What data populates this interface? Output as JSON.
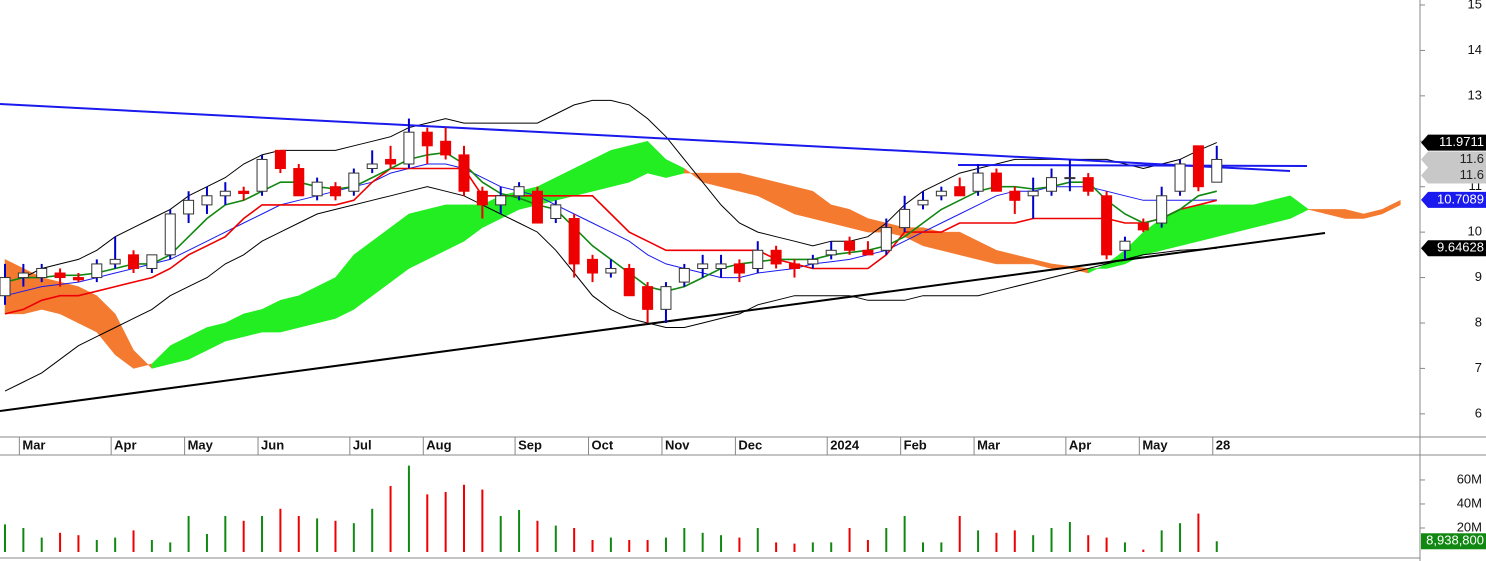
{
  "chart_data": {
    "type": "candlestick",
    "categories": [
      null,
      "Mar",
      null,
      null,
      null,
      null,
      "Apr",
      null,
      null,
      null,
      "May",
      null,
      null,
      null,
      "Jun",
      null,
      null,
      null,
      null,
      "Jul",
      null,
      null,
      null,
      "Aug",
      null,
      null,
      null,
      null,
      "Sep",
      null,
      null,
      null,
      "Oct",
      null,
      null,
      null,
      "Nov",
      null,
      null,
      null,
      "Dec",
      null,
      null,
      null,
      null,
      "2024",
      null,
      null,
      null,
      "Feb",
      null,
      null,
      null,
      "Mar",
      null,
      null,
      null,
      null,
      "Apr",
      null,
      null,
      null,
      "May",
      null,
      null,
      null,
      "28",
      null,
      null,
      null,
      null,
      null,
      null,
      null,
      null,
      null,
      null
    ],
    "open": [
      8.6,
      9.0,
      9.0,
      9.1,
      9.0,
      9.0,
      9.3,
      9.5,
      9.2,
      9.5,
      10.4,
      10.6,
      10.8,
      10.9,
      10.9,
      11.8,
      11.4,
      10.8,
      11.0,
      10.9,
      11.4,
      11.6,
      11.5,
      12.2,
      12.0,
      11.7,
      10.9,
      10.6,
      10.8,
      10.9,
      10.3,
      10.3,
      9.4,
      9.1,
      9.2,
      8.8,
      8.3,
      8.9,
      9.2,
      9.2,
      9.3,
      9.2,
      9.6,
      9.3,
      9.3,
      9.5,
      9.8,
      9.6,
      9.6,
      10.1,
      10.6,
      10.8,
      11.0,
      10.9,
      11.3,
      10.9,
      10.8,
      10.9,
      11.2,
      11.2,
      10.8,
      9.6,
      10.2,
      10.2,
      10.9,
      11.9,
      11.1,
      null,
      null,
      null,
      null,
      null,
      null,
      null,
      null,
      null,
      null
    ],
    "high": [
      9.3,
      9.3,
      9.3,
      9.2,
      9.1,
      9.4,
      9.9,
      9.6,
      9.5,
      10.5,
      10.9,
      11.0,
      11.1,
      11.0,
      11.7,
      11.8,
      11.5,
      11.2,
      11.1,
      11.4,
      11.8,
      11.9,
      12.5,
      12.3,
      12.3,
      11.9,
      11.0,
      11.0,
      11.1,
      11.0,
      10.7,
      10.4,
      9.5,
      9.4,
      9.3,
      8.9,
      8.9,
      9.3,
      9.5,
      9.5,
      9.4,
      9.8,
      9.7,
      9.4,
      9.5,
      9.8,
      9.9,
      9.8,
      10.3,
      10.8,
      10.9,
      11.0,
      11.2,
      11.5,
      11.4,
      11.0,
      11.2,
      11.4,
      11.6,
      11.3,
      10.9,
      9.9,
      10.3,
      11.0,
      11.6,
      11.9,
      11.9,
      null,
      null,
      null,
      null,
      null,
      null,
      null,
      null,
      null,
      null
    ],
    "low": [
      8.4,
      8.8,
      8.9,
      8.8,
      8.9,
      8.9,
      9.2,
      9.1,
      9.1,
      9.4,
      10.2,
      10.4,
      10.6,
      10.7,
      10.8,
      11.3,
      10.8,
      10.7,
      10.7,
      10.8,
      11.3,
      11.4,
      11.4,
      11.5,
      11.6,
      10.8,
      10.3,
      10.4,
      10.7,
      10.2,
      10.2,
      9.0,
      8.9,
      9.0,
      8.6,
      8.0,
      8.0,
      8.8,
      9.0,
      9.0,
      8.9,
      9.1,
      9.2,
      9.0,
      9.2,
      9.4,
      9.5,
      9.5,
      9.5,
      10.0,
      10.5,
      10.7,
      10.8,
      10.8,
      10.9,
      10.4,
      10.3,
      10.8,
      10.9,
      10.8,
      9.4,
      9.4,
      10.0,
      10.1,
      10.8,
      10.9,
      11.1,
      null,
      null,
      null,
      null,
      null,
      null,
      null,
      null,
      null,
      null
    ],
    "close": [
      9.0,
      9.1,
      9.2,
      9.0,
      8.95,
      9.3,
      9.4,
      9.2,
      9.5,
      10.4,
      10.7,
      10.8,
      10.9,
      10.85,
      11.6,
      11.4,
      10.8,
      11.1,
      10.8,
      11.3,
      11.5,
      11.5,
      12.2,
      11.9,
      11.7,
      10.9,
      10.6,
      10.8,
      11.0,
      10.2,
      10.6,
      9.3,
      9.1,
      9.2,
      8.6,
      8.3,
      8.8,
      9.2,
      9.3,
      9.3,
      9.1,
      9.6,
      9.3,
      9.2,
      9.4,
      9.6,
      9.6,
      9.5,
      10.1,
      10.5,
      10.7,
      10.9,
      10.8,
      11.3,
      10.9,
      10.7,
      10.9,
      11.2,
      11.2,
      10.9,
      9.5,
      9.8,
      10.05,
      10.8,
      11.5,
      11.0,
      11.6,
      null,
      null,
      null,
      null,
      null,
      null,
      null,
      null,
      null,
      null
    ],
    "up_color": "#0000cc",
    "down_color": "#ee0000",
    "ylim": [
      5.49,
      15.11
    ],
    "yticks": [
      6,
      7,
      8,
      9,
      10,
      11,
      12,
      13,
      14,
      15
    ],
    "lines": [
      {
        "color": "#000000",
        "values": [
          8.9,
          9.0,
          9.2,
          9.3,
          9.4,
          9.6,
          9.9,
          10.1,
          10.3,
          10.5,
          10.8,
          11.0,
          11.2,
          11.5,
          11.7,
          11.8,
          11.8,
          11.8,
          11.8,
          11.9,
          12.0,
          12.1,
          12.3,
          12.4,
          12.5,
          12.4,
          12.4,
          12.4,
          12.4,
          12.4,
          12.6,
          12.8,
          12.9,
          12.9,
          12.8,
          12.5,
          12.1,
          11.6,
          11.1,
          10.6,
          10.2,
          10.0,
          9.9,
          9.8,
          9.7,
          9.8,
          9.8,
          9.9,
          10.2,
          10.6,
          10.9,
          11.1,
          11.3,
          11.4,
          11.5,
          11.6,
          11.6,
          11.6,
          11.6,
          11.6,
          11.6,
          11.5,
          11.4,
          11.5,
          11.6,
          11.8,
          11.97,
          null,
          null,
          null,
          null,
          null,
          null,
          null,
          null,
          null,
          null
        ]
      },
      {
        "color": "#000000",
        "values": [
          6.5,
          6.7,
          6.9,
          7.2,
          7.5,
          7.7,
          7.9,
          8.1,
          8.3,
          8.6,
          8.8,
          9.0,
          9.3,
          9.5,
          9.8,
          10.0,
          10.2,
          10.4,
          10.5,
          10.6,
          10.7,
          10.8,
          10.9,
          11.0,
          10.9,
          10.8,
          10.6,
          10.4,
          10.2,
          10.0,
          9.6,
          9.1,
          8.6,
          8.3,
          8.1,
          8.0,
          7.9,
          7.9,
          8.0,
          8.1,
          8.2,
          8.4,
          8.5,
          8.6,
          8.6,
          8.6,
          8.6,
          8.5,
          8.5,
          8.5,
          8.6,
          8.6,
          8.6,
          8.6,
          8.7,
          8.8,
          8.9,
          9.0,
          9.1,
          9.2,
          9.3,
          9.4,
          9.5,
          9.55,
          9.6,
          9.62,
          9.646,
          null,
          null,
          null,
          null,
          null,
          null,
          null,
          null,
          null,
          null
        ]
      },
      {
        "color": "#1a1aee",
        "values": [
          8.6,
          8.7,
          8.8,
          8.85,
          8.9,
          9.0,
          9.1,
          9.2,
          9.3,
          9.4,
          9.6,
          9.8,
          10.0,
          10.2,
          10.4,
          10.6,
          10.7,
          10.8,
          10.9,
          11.0,
          11.1,
          11.3,
          11.4,
          11.5,
          11.5,
          11.4,
          11.2,
          11.0,
          10.9,
          10.8,
          10.6,
          10.4,
          10.2,
          10.0,
          9.8,
          9.5,
          9.3,
          9.2,
          9.1,
          9.0,
          9.0,
          9.1,
          9.15,
          9.2,
          9.3,
          9.35,
          9.4,
          9.5,
          9.6,
          9.8,
          10.0,
          10.2,
          10.4,
          10.6,
          10.8,
          10.9,
          10.9,
          11.0,
          11.0,
          11.0,
          10.9,
          10.8,
          10.7,
          10.7,
          10.7,
          10.7,
          10.71,
          null,
          null,
          null,
          null,
          null,
          null,
          null,
          null,
          null,
          null
        ]
      },
      {
        "color": "#ee0000",
        "values": [
          8.2,
          8.3,
          8.5,
          8.6,
          8.6,
          8.7,
          8.8,
          8.9,
          9.0,
          9.2,
          9.5,
          9.7,
          9.9,
          10.3,
          10.6,
          10.6,
          10.6,
          10.6,
          10.6,
          10.7,
          11.1,
          11.4,
          11.4,
          11.4,
          11.4,
          11.4,
          10.8,
          10.8,
          10.8,
          10.8,
          10.8,
          10.8,
          10.8,
          10.4,
          10.0,
          9.8,
          9.6,
          9.6,
          9.6,
          9.6,
          9.6,
          9.6,
          9.4,
          9.3,
          9.2,
          9.2,
          9.2,
          9.2,
          9.5,
          10.0,
          10.0,
          10.0,
          10.2,
          10.2,
          10.2,
          10.2,
          10.3,
          10.3,
          10.3,
          10.3,
          10.3,
          10.2,
          10.2,
          10.3,
          10.5,
          10.6,
          10.7,
          null,
          null,
          null,
          null,
          null,
          null,
          null,
          null,
          null,
          null
        ]
      },
      {
        "color": "#118811",
        "values": [
          8.9,
          9.0,
          9.0,
          9.05,
          9.05,
          9.1,
          9.2,
          9.3,
          9.3,
          9.5,
          9.9,
          10.3,
          10.6,
          10.7,
          10.9,
          11.1,
          11.1,
          11.0,
          10.95,
          11.0,
          11.2,
          11.4,
          11.6,
          11.7,
          11.75,
          11.5,
          11.1,
          10.85,
          10.75,
          10.6,
          10.5,
          10.1,
          9.7,
          9.4,
          9.1,
          8.8,
          8.7,
          8.8,
          9.0,
          9.2,
          9.3,
          9.35,
          9.4,
          9.4,
          9.4,
          9.5,
          9.55,
          9.6,
          9.7,
          9.9,
          10.2,
          10.5,
          10.7,
          10.9,
          11.0,
          11.0,
          10.95,
          11.0,
          11.1,
          11.1,
          10.7,
          10.4,
          10.2,
          10.3,
          10.5,
          10.8,
          10.9,
          null,
          null,
          null,
          null,
          null,
          null,
          null,
          null,
          null,
          null
        ]
      }
    ],
    "cloud": {
      "up_color": "#22ee22",
      "down_color": "#f47a30",
      "span_a": [
        8.2,
        8.2,
        8.3,
        8.2,
        8.0,
        7.8,
        7.3,
        7.0,
        7.1,
        7.5,
        7.7,
        7.9,
        8.0,
        8.2,
        8.3,
        8.5,
        8.6,
        8.8,
        9.0,
        9.5,
        9.8,
        10.1,
        10.4,
        10.5,
        10.6,
        10.6,
        10.6,
        10.8,
        10.9,
        11.0,
        11.2,
        11.4,
        11.6,
        11.8,
        11.9,
        12.0,
        11.6,
        11.4,
        11.1,
        11.0,
        10.9,
        10.8,
        10.6,
        10.4,
        10.3,
        10.2,
        10.1,
        10.0,
        10.0,
        9.9,
        9.7,
        9.6,
        9.5,
        9.4,
        9.3,
        9.3,
        9.3,
        9.2,
        9.2,
        9.1,
        9.3,
        9.6,
        10.0,
        10.3,
        10.5,
        10.6,
        10.6,
        10.6,
        10.6,
        10.7,
        10.8,
        10.5,
        10.4,
        10.3,
        10.3,
        10.4,
        10.6
      ],
      "span_b": [
        9.4,
        9.2,
        9.0,
        8.9,
        8.8,
        8.6,
        8.2,
        7.4,
        7.0,
        7.1,
        7.2,
        7.4,
        7.6,
        7.7,
        7.8,
        7.8,
        7.9,
        8.0,
        8.1,
        8.3,
        8.6,
        8.9,
        9.2,
        9.4,
        9.6,
        9.8,
        10.1,
        10.3,
        10.5,
        10.6,
        10.7,
        10.8,
        10.9,
        11.0,
        11.1,
        11.3,
        11.2,
        11.3,
        11.3,
        11.3,
        11.3,
        11.2,
        11.1,
        11.0,
        10.9,
        10.6,
        10.5,
        10.3,
        10.2,
        10.1,
        10.1,
        10.0,
        10.0,
        9.8,
        9.6,
        9.5,
        9.4,
        9.3,
        9.25,
        9.2,
        9.2,
        9.3,
        9.5,
        9.6,
        9.7,
        9.8,
        9.9,
        10.0,
        10.1,
        10.2,
        10.3,
        10.5,
        10.5,
        10.5,
        10.4,
        10.5,
        10.7
      ]
    },
    "price_labels": [
      {
        "value": 11.9711,
        "color": "#000000"
      },
      {
        "value": 11.6,
        "color": "#c8c8c8"
      },
      {
        "value": 11.6,
        "color": "#c8c8c8"
      },
      {
        "value": 10.7089,
        "color": "#1a1aee"
      },
      {
        "value": 9.64628,
        "color": "#000000"
      }
    ],
    "volume": {
      "values": [
        23000000,
        20000000,
        12000000,
        16000000,
        14000000,
        10000000,
        12000000,
        18000000,
        10000000,
        8000000,
        30000000,
        15000000,
        30000000,
        26000000,
        30000000,
        36000000,
        30000000,
        28000000,
        26000000,
        24000000,
        36000000,
        55000000,
        72000000,
        48000000,
        50000000,
        56000000,
        52000000,
        30000000,
        35000000,
        26000000,
        22000000,
        20000000,
        10000000,
        12000000,
        10000000,
        10000000,
        12000000,
        20000000,
        16000000,
        14000000,
        12000000,
        20000000,
        8000000,
        7000000,
        8000000,
        8000000,
        20000000,
        10000000,
        20000000,
        30000000,
        8000000,
        8000000,
        30000000,
        18000000,
        16000000,
        18000000,
        14000000,
        20000000,
        25000000,
        14000000,
        12000000,
        8000000,
        2000000,
        18000000,
        24000000,
        32000000,
        8938800,
        null,
        null,
        null,
        null,
        null,
        null,
        null,
        null,
        null,
        null
      ],
      "value_labels": [
        null,
        null,
        null,
        null,
        null,
        null,
        null,
        null,
        null,
        null,
        null,
        null,
        null,
        null,
        null,
        null,
        null,
        null,
        null,
        null,
        null,
        null,
        null,
        null,
        null,
        null,
        null,
        null,
        null,
        null,
        null,
        null,
        null,
        null,
        null,
        null,
        null,
        null,
        null,
        null,
        null,
        null,
        null,
        null,
        null,
        null,
        null,
        null,
        null,
        null,
        null,
        null,
        null,
        null,
        null,
        null,
        null,
        null,
        null,
        null,
        null,
        null,
        null,
        null,
        null,
        null,
        "8,938,800",
        null,
        null,
        null,
        null,
        null,
        null,
        null,
        null,
        null,
        null
      ],
      "up_color": "#118811",
      "down_color": "#ee0000",
      "ylim": [
        0,
        80800000
      ],
      "yticks": [
        {
          "value": 20000000,
          "label": "20M"
        },
        {
          "value": 40000000,
          "label": "40M"
        },
        {
          "value": 60000000,
          "label": "60M"
        }
      ]
    }
  }
}
